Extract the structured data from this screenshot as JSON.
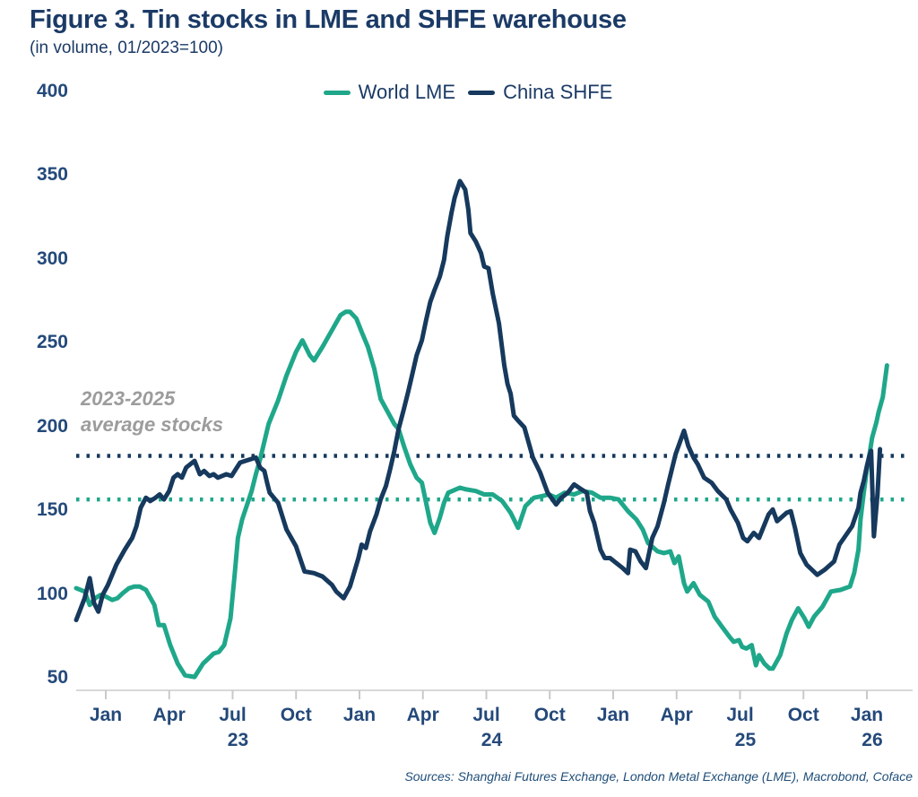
{
  "header": {
    "title": "Figure 3. Tin stocks in LME and SHFE warehouse",
    "subtitle": "(in volume, 01/2023=100)"
  },
  "legend": {
    "items": [
      {
        "label": "World LME",
        "color": "#1FA78A"
      },
      {
        "label": "China SHFE",
        "color": "#16395D"
      }
    ]
  },
  "annotation": {
    "line1": "2023-2025",
    "line2": "average stocks"
  },
  "sources": "Sources: Shanghai Futures Exchange, London Metal Exchange (LME), Macrobond, Coface",
  "colors": {
    "lme": "#1FA78A",
    "shfe": "#16395D",
    "axis_text": "#24497A",
    "title_text": "#1B3A66",
    "annotation_gray": "#9C9C9C",
    "baseline_gray": "#D8D8D8"
  },
  "chart_data": {
    "type": "line",
    "title": "Tin stocks in LME and SHFE warehouse",
    "subtitle": "(in volume, 01/2023=100)",
    "x_unit": "months since Jan 2023",
    "ylim": [
      50,
      400
    ],
    "grid": false,
    "legend_position": "top-center",
    "y_ticks": [
      400,
      350,
      300,
      250,
      200,
      150,
      100,
      50
    ],
    "x_ticks": [
      {
        "label": "Jan",
        "m": 0
      },
      {
        "label": "Apr",
        "m": 3
      },
      {
        "label": "Jul",
        "m": 6,
        "year": "23"
      },
      {
        "label": "Oct",
        "m": 9
      },
      {
        "label": "Jan",
        "m": 12
      },
      {
        "label": "Apr",
        "m": 15
      },
      {
        "label": "Jul",
        "m": 18,
        "year": "24"
      },
      {
        "label": "Oct",
        "m": 21
      },
      {
        "label": "Jan",
        "m": 24
      },
      {
        "label": "Apr",
        "m": 27
      },
      {
        "label": "Jul",
        "m": 30,
        "year": "25"
      },
      {
        "label": "Oct",
        "m": 33
      },
      {
        "label": "Jan",
        "m": 36,
        "year": "26"
      }
    ],
    "average_lines": [
      {
        "series": "World LME",
        "value": 157,
        "style": "dotted"
      },
      {
        "series": "China SHFE",
        "value": 183,
        "style": "dotted"
      }
    ],
    "series": [
      {
        "name": "World LME",
        "points": [
          [
            -1.4,
            104
          ],
          [
            -1.0,
            102
          ],
          [
            -0.76,
            94
          ],
          [
            -0.5,
            98
          ],
          [
            -0.25,
            100
          ],
          [
            0,
            99
          ],
          [
            0.3,
            97
          ],
          [
            0.55,
            98
          ],
          [
            0.8,
            101
          ],
          [
            1.1,
            104
          ],
          [
            1.35,
            105
          ],
          [
            1.6,
            105
          ],
          [
            1.9,
            103
          ],
          [
            2.3,
            94
          ],
          [
            2.5,
            82
          ],
          [
            2.75,
            82
          ],
          [
            3.05,
            70
          ],
          [
            3.4,
            59
          ],
          [
            3.75,
            52
          ],
          [
            4.2,
            51
          ],
          [
            4.6,
            59
          ],
          [
            5.1,
            65
          ],
          [
            5.35,
            66
          ],
          [
            5.6,
            70
          ],
          [
            5.9,
            86
          ],
          [
            6.1,
            113
          ],
          [
            6.25,
            134
          ],
          [
            6.45,
            145
          ],
          [
            6.9,
            162
          ],
          [
            7.1,
            172
          ],
          [
            7.3,
            181
          ],
          [
            7.7,
            202
          ],
          [
            8.15,
            216
          ],
          [
            8.55,
            231
          ],
          [
            9.0,
            245
          ],
          [
            9.3,
            252
          ],
          [
            9.65,
            243
          ],
          [
            9.85,
            240
          ],
          [
            10.25,
            248
          ],
          [
            10.7,
            258
          ],
          [
            11.1,
            267
          ],
          [
            11.35,
            269
          ],
          [
            11.55,
            269
          ],
          [
            11.85,
            265
          ],
          [
            12.1,
            257
          ],
          [
            12.4,
            248
          ],
          [
            12.7,
            235
          ],
          [
            13.0,
            217
          ],
          [
            13.3,
            210
          ],
          [
            13.65,
            202
          ],
          [
            13.85,
            199
          ],
          [
            14.1,
            189
          ],
          [
            14.4,
            178
          ],
          [
            14.7,
            170
          ],
          [
            14.95,
            167
          ],
          [
            15.15,
            155
          ],
          [
            15.35,
            143
          ],
          [
            15.55,
            137
          ],
          [
            15.8,
            146
          ],
          [
            16.0,
            155
          ],
          [
            16.2,
            161
          ],
          [
            16.75,
            164
          ],
          [
            17.05,
            163
          ],
          [
            17.5,
            162
          ],
          [
            17.9,
            160
          ],
          [
            18.3,
            160
          ],
          [
            18.75,
            156
          ],
          [
            19.15,
            149
          ],
          [
            19.5,
            140
          ],
          [
            19.85,
            153
          ],
          [
            20.25,
            158
          ],
          [
            20.65,
            159
          ],
          [
            20.95,
            160
          ],
          [
            21.3,
            158
          ],
          [
            21.7,
            161
          ],
          [
            22.15,
            160
          ],
          [
            22.55,
            162
          ],
          [
            23.0,
            161
          ],
          [
            23.4,
            158
          ],
          [
            23.85,
            158
          ],
          [
            24.25,
            157
          ],
          [
            24.7,
            150
          ],
          [
            25.1,
            145
          ],
          [
            25.4,
            139
          ],
          [
            25.65,
            131
          ],
          [
            26.1,
            126
          ],
          [
            26.4,
            125
          ],
          [
            26.7,
            126
          ],
          [
            26.9,
            119
          ],
          [
            27.1,
            123
          ],
          [
            27.35,
            107
          ],
          [
            27.5,
            102
          ],
          [
            27.8,
            107
          ],
          [
            28.1,
            100
          ],
          [
            28.5,
            96
          ],
          [
            28.8,
            87
          ],
          [
            29.15,
            81
          ],
          [
            29.5,
            75
          ],
          [
            29.7,
            72
          ],
          [
            29.95,
            73
          ],
          [
            30.1,
            69
          ],
          [
            30.3,
            68
          ],
          [
            30.55,
            70
          ],
          [
            30.75,
            58
          ],
          [
            30.9,
            64
          ],
          [
            31.15,
            59
          ],
          [
            31.4,
            56
          ],
          [
            31.55,
            56
          ],
          [
            31.9,
            64
          ],
          [
            32.2,
            77
          ],
          [
            32.45,
            85
          ],
          [
            32.75,
            92
          ],
          [
            33.05,
            86
          ],
          [
            33.25,
            81
          ],
          [
            33.5,
            87
          ],
          [
            33.9,
            93
          ],
          [
            34.3,
            102
          ],
          [
            34.75,
            103
          ],
          [
            35.2,
            105
          ],
          [
            35.4,
            113
          ],
          [
            35.6,
            127
          ],
          [
            35.7,
            145
          ],
          [
            35.85,
            161
          ],
          [
            36.0,
            175
          ],
          [
            36.15,
            186
          ],
          [
            36.25,
            194
          ],
          [
            36.45,
            203
          ],
          [
            36.55,
            209
          ],
          [
            36.75,
            218
          ],
          [
            36.95,
            237
          ]
        ]
      },
      {
        "name": "China SHFE",
        "points": [
          [
            -1.4,
            85
          ],
          [
            -1.0,
            98
          ],
          [
            -0.76,
            110
          ],
          [
            -0.55,
            95
          ],
          [
            -0.35,
            90
          ],
          [
            -0.15,
            100
          ],
          [
            0.1,
            106
          ],
          [
            0.5,
            118
          ],
          [
            0.9,
            127
          ],
          [
            1.25,
            134
          ],
          [
            1.45,
            141
          ],
          [
            1.65,
            152
          ],
          [
            1.9,
            158
          ],
          [
            2.1,
            156
          ],
          [
            2.35,
            158
          ],
          [
            2.55,
            160
          ],
          [
            2.75,
            157
          ],
          [
            3.0,
            162
          ],
          [
            3.2,
            170
          ],
          [
            3.4,
            172
          ],
          [
            3.6,
            170
          ],
          [
            3.8,
            176
          ],
          [
            4.0,
            178
          ],
          [
            4.2,
            180
          ],
          [
            4.45,
            172
          ],
          [
            4.65,
            174
          ],
          [
            4.9,
            171
          ],
          [
            5.1,
            172
          ],
          [
            5.3,
            170
          ],
          [
            5.5,
            171
          ],
          [
            5.7,
            172
          ],
          [
            5.95,
            171
          ],
          [
            6.15,
            175
          ],
          [
            6.35,
            179
          ],
          [
            6.6,
            180
          ],
          [
            6.85,
            181
          ],
          [
            7.1,
            182
          ],
          [
            7.3,
            176
          ],
          [
            7.5,
            174
          ],
          [
            7.65,
            166
          ],
          [
            7.75,
            161
          ],
          [
            8.15,
            155
          ],
          [
            8.55,
            139
          ],
          [
            9.0,
            129
          ],
          [
            9.4,
            114
          ],
          [
            9.85,
            113
          ],
          [
            10.25,
            111
          ],
          [
            10.7,
            106
          ],
          [
            10.9,
            102
          ],
          [
            11.25,
            98
          ],
          [
            11.55,
            105
          ],
          [
            11.95,
            122
          ],
          [
            12.1,
            130
          ],
          [
            12.3,
            128
          ],
          [
            12.5,
            138
          ],
          [
            12.8,
            148
          ],
          [
            13.0,
            157
          ],
          [
            13.25,
            165
          ],
          [
            13.45,
            175
          ],
          [
            13.65,
            186
          ],
          [
            13.85,
            199
          ],
          [
            14.1,
            211
          ],
          [
            14.3,
            221
          ],
          [
            14.5,
            232
          ],
          [
            14.7,
            243
          ],
          [
            14.95,
            252
          ],
          [
            15.15,
            264
          ],
          [
            15.35,
            275
          ],
          [
            15.55,
            282
          ],
          [
            15.8,
            290
          ],
          [
            16.0,
            300
          ],
          [
            16.15,
            314
          ],
          [
            16.35,
            328
          ],
          [
            16.5,
            337
          ],
          [
            16.75,
            347
          ],
          [
            17.0,
            342
          ],
          [
            17.15,
            330
          ],
          [
            17.25,
            316
          ],
          [
            17.5,
            311
          ],
          [
            17.75,
            304
          ],
          [
            17.9,
            296
          ],
          [
            18.1,
            295
          ],
          [
            18.3,
            280
          ],
          [
            18.6,
            262
          ],
          [
            18.85,
            237
          ],
          [
            19.0,
            226
          ],
          [
            19.15,
            220
          ],
          [
            19.3,
            207
          ],
          [
            19.5,
            204
          ],
          [
            19.8,
            200
          ],
          [
            20.2,
            182
          ],
          [
            20.55,
            173
          ],
          [
            20.9,
            161
          ],
          [
            21.3,
            154
          ],
          [
            21.55,
            158
          ],
          [
            21.85,
            161
          ],
          [
            22.15,
            166
          ],
          [
            22.5,
            163
          ],
          [
            22.75,
            161
          ],
          [
            22.9,
            150
          ],
          [
            23.1,
            143
          ],
          [
            23.4,
            127
          ],
          [
            23.6,
            122
          ],
          [
            23.85,
            122
          ],
          [
            24.15,
            119
          ],
          [
            24.45,
            116
          ],
          [
            24.7,
            113
          ],
          [
            24.8,
            127
          ],
          [
            25.05,
            126
          ],
          [
            25.3,
            120
          ],
          [
            25.55,
            116
          ],
          [
            25.85,
            134
          ],
          [
            26.1,
            141
          ],
          [
            26.4,
            155
          ],
          [
            26.6,
            166
          ],
          [
            26.95,
            184
          ],
          [
            27.35,
            198
          ],
          [
            27.55,
            189
          ],
          [
            27.8,
            182
          ],
          [
            28.0,
            178
          ],
          [
            28.3,
            170
          ],
          [
            28.65,
            167
          ],
          [
            28.95,
            162
          ],
          [
            29.35,
            157
          ],
          [
            29.55,
            151
          ],
          [
            29.9,
            143
          ],
          [
            30.15,
            134
          ],
          [
            30.35,
            132
          ],
          [
            30.65,
            137
          ],
          [
            30.9,
            134
          ],
          [
            31.35,
            148
          ],
          [
            31.55,
            151
          ],
          [
            31.75,
            144
          ],
          [
            32.2,
            149
          ],
          [
            32.4,
            150
          ],
          [
            32.6,
            140
          ],
          [
            32.85,
            125
          ],
          [
            33.15,
            118
          ],
          [
            33.65,
            112
          ],
          [
            34.0,
            115
          ],
          [
            34.45,
            120
          ],
          [
            34.7,
            130
          ],
          [
            35.3,
            141
          ],
          [
            35.6,
            152
          ],
          [
            35.7,
            161
          ],
          [
            35.85,
            168
          ],
          [
            36.0,
            177
          ],
          [
            36.1,
            182
          ],
          [
            36.2,
            186
          ],
          [
            36.33,
            135
          ],
          [
            36.5,
            160
          ],
          [
            36.62,
            187
          ]
        ]
      }
    ]
  }
}
